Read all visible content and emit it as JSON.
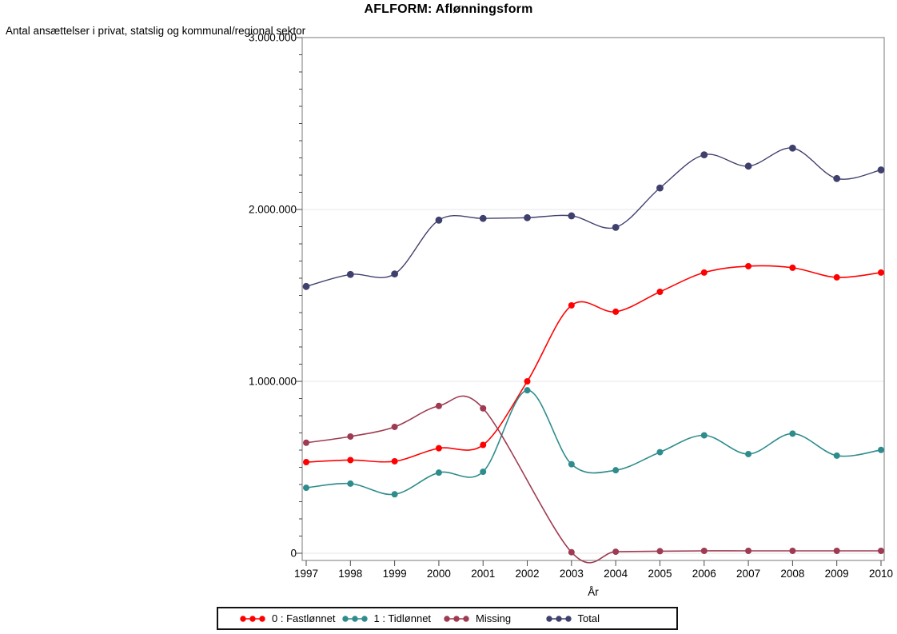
{
  "chart_data": {
    "type": "line",
    "title": "AFLFORM: Aflønningsform",
    "y_axis_title": "Antal ansættelser i privat, statslig og kommunal/regional sektor",
    "xlabel": "År",
    "x": [
      1997,
      1998,
      1999,
      2000,
      2001,
      2002,
      2003,
      2004,
      2005,
      2006,
      2007,
      2008,
      2009,
      2010
    ],
    "x_tick_labels": [
      "1997",
      "1998",
      "1999",
      "2000",
      "2001",
      "2002",
      "2003",
      "2004",
      "2005",
      "2006",
      "2007",
      "2008",
      "2009",
      "2010"
    ],
    "ylim": [
      0,
      3000000
    ],
    "y_ticks": [
      0,
      1000000,
      2000000,
      3000000
    ],
    "y_tick_labels": [
      "0",
      "1.000.000",
      "2.000.000",
      "3.000.000"
    ],
    "y_minor_tick_step": 100000,
    "grid": "horizontal gridlines at major y ticks",
    "curve": "smooth spline through data points",
    "legend_position": "bottom",
    "frame_color": "#8f8f8f",
    "gridline_color": "#e7e7e7",
    "tick_color": "#4a4a4a",
    "series": [
      {
        "id": "fastloennet",
        "name": "0 : Fastlønnet",
        "color": "#ff0000",
        "values": [
          530000,
          542000,
          535000,
          611000,
          630000,
          1000000,
          1442000,
          1405000,
          1521000,
          1633000,
          1670000,
          1661000,
          1605000,
          1633000
        ]
      },
      {
        "id": "tidloennet",
        "name": "1 : Tidlønnet",
        "color": "#2f8c8c",
        "values": [
          381000,
          405000,
          343000,
          469000,
          474000,
          948000,
          518000,
          483000,
          588000,
          686000,
          577000,
          696000,
          568000,
          601000
        ]
      },
      {
        "id": "missing",
        "name": "Missing",
        "color": "#9e3b52",
        "values": [
          643000,
          679000,
          735000,
          857000,
          843000,
          null,
          6000,
          9000,
          12000,
          14000,
          14000,
          14000,
          14000,
          14000
        ]
      },
      {
        "id": "total",
        "name": "Total",
        "color": "#40406e",
        "values": [
          1552000,
          1622000,
          1625000,
          1938000,
          1948000,
          1952000,
          1963000,
          1896000,
          2125000,
          2318000,
          2252000,
          2357000,
          2180000,
          2230000
        ]
      }
    ]
  }
}
